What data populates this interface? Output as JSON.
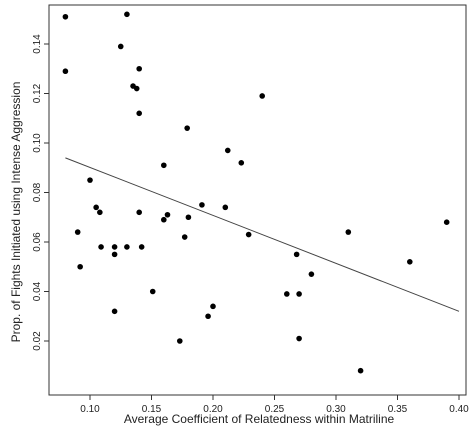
{
  "chart_data": {
    "type": "scatter",
    "title": "",
    "xlabel": "Average Coefficient of Relatedness within Matriline",
    "ylabel": "Prop. of Fights Initiated using Intense Aggression",
    "xlim": [
      0.08,
      0.4
    ],
    "ylim": [
      0.01,
      0.15
    ],
    "xticks": [
      "0.10",
      "0.15",
      "0.20",
      "0.25",
      "0.30",
      "0.35",
      "0.40"
    ],
    "yticks": [
      "0.02",
      "0.04",
      "0.06",
      "0.08",
      "0.10",
      "0.12",
      "0.14"
    ],
    "grid": false,
    "box": true,
    "points": [
      {
        "x": 0.08,
        "y": 0.151
      },
      {
        "x": 0.08,
        "y": 0.129
      },
      {
        "x": 0.09,
        "y": 0.064
      },
      {
        "x": 0.092,
        "y": 0.05
      },
      {
        "x": 0.1,
        "y": 0.085
      },
      {
        "x": 0.105,
        "y": 0.074
      },
      {
        "x": 0.108,
        "y": 0.072
      },
      {
        "x": 0.109,
        "y": 0.058
      },
      {
        "x": 0.12,
        "y": 0.058
      },
      {
        "x": 0.12,
        "y": 0.055
      },
      {
        "x": 0.12,
        "y": 0.032
      },
      {
        "x": 0.125,
        "y": 0.139
      },
      {
        "x": 0.13,
        "y": 0.152
      },
      {
        "x": 0.13,
        "y": 0.058
      },
      {
        "x": 0.135,
        "y": 0.123
      },
      {
        "x": 0.138,
        "y": 0.122
      },
      {
        "x": 0.14,
        "y": 0.13
      },
      {
        "x": 0.14,
        "y": 0.112
      },
      {
        "x": 0.14,
        "y": 0.072
      },
      {
        "x": 0.142,
        "y": 0.058
      },
      {
        "x": 0.151,
        "y": 0.04
      },
      {
        "x": 0.16,
        "y": 0.091
      },
      {
        "x": 0.16,
        "y": 0.069
      },
      {
        "x": 0.163,
        "y": 0.071
      },
      {
        "x": 0.173,
        "y": 0.02
      },
      {
        "x": 0.177,
        "y": 0.062
      },
      {
        "x": 0.179,
        "y": 0.106
      },
      {
        "x": 0.18,
        "y": 0.07
      },
      {
        "x": 0.191,
        "y": 0.075
      },
      {
        "x": 0.196,
        "y": 0.03
      },
      {
        "x": 0.2,
        "y": 0.034
      },
      {
        "x": 0.21,
        "y": 0.074
      },
      {
        "x": 0.212,
        "y": 0.097
      },
      {
        "x": 0.223,
        "y": 0.092
      },
      {
        "x": 0.229,
        "y": 0.063
      },
      {
        "x": 0.24,
        "y": 0.119
      },
      {
        "x": 0.26,
        "y": 0.039
      },
      {
        "x": 0.268,
        "y": 0.055
      },
      {
        "x": 0.27,
        "y": 0.039
      },
      {
        "x": 0.27,
        "y": 0.021
      },
      {
        "x": 0.28,
        "y": 0.047
      },
      {
        "x": 0.31,
        "y": 0.064
      },
      {
        "x": 0.32,
        "y": 0.008
      },
      {
        "x": 0.36,
        "y": 0.052
      },
      {
        "x": 0.39,
        "y": 0.068
      }
    ],
    "trendline": {
      "x": [
        0.08,
        0.4
      ],
      "y": [
        0.094,
        0.032
      ]
    },
    "colors": {
      "points": "#000000",
      "trendline": "#444444",
      "axes": "#333333"
    }
  }
}
